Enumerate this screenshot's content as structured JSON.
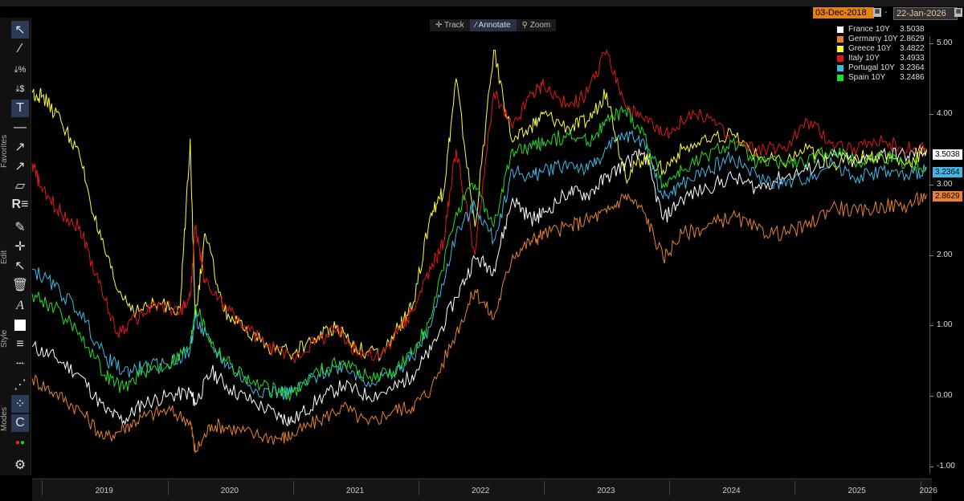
{
  "toolbar": {
    "sections": [
      "Favorites",
      "Edit",
      "Style",
      "Modes"
    ]
  },
  "date_range": {
    "start": "03-Dec-2018",
    "separator": "-",
    "end": "22-Jan-2026"
  },
  "mode_tabs": [
    {
      "label": "Track",
      "icon": "crosshair-icon"
    },
    {
      "label": "Annotate",
      "icon": "pencil-icon"
    },
    {
      "label": "Zoom",
      "icon": "magnifier-icon"
    }
  ],
  "legend": [
    {
      "name": "France 10Y",
      "value": "3.5038",
      "color": "#ffffff"
    },
    {
      "name": "Germany 10Y",
      "value": "2.8629",
      "color": "#e8822c"
    },
    {
      "name": "Greece 10Y",
      "value": "3.4822",
      "color": "#ffff33"
    },
    {
      "name": "Italy 10Y",
      "value": "3.4933",
      "color": "#e01818"
    },
    {
      "name": "Portugal 10Y",
      "value": "3.2364",
      "color": "#3fb8e6"
    },
    {
      "name": "Spain 10Y",
      "value": "3.2486",
      "color": "#22dd22"
    }
  ],
  "last_labels": [
    {
      "value": "3.5038",
      "color": "#ffffff"
    },
    {
      "value": "3.2364",
      "color": "#3fb8e6"
    },
    {
      "value": "2.8629",
      "color": "#e8822c"
    }
  ],
  "chart_data": {
    "type": "line",
    "title": "",
    "xlabel": "",
    "ylabel": "",
    "ylim": [
      -1.1,
      5.1
    ],
    "yticks": [
      "5.00",
      "4.00",
      "3.00",
      "2.00",
      "1.00",
      "0.00",
      "-1.00"
    ],
    "ytick_values": [
      5,
      4,
      3,
      2,
      1,
      0,
      -1
    ],
    "xticks": [
      "2019",
      "2020",
      "2021",
      "2022",
      "2023",
      "2024",
      "2025",
      "2026"
    ],
    "xtick_values": [
      2019.5,
      2020.5,
      2021.5,
      2022.5,
      2023.5,
      2024.5,
      2025.5,
      2026.07
    ],
    "xlim": [
      2018.92,
      2026.06
    ],
    "grid": false,
    "legend_position": "top-right",
    "series": [
      {
        "name": "France 10Y",
        "color": "#ffffff",
        "x": [
          2018.92,
          2019.1,
          2019.3,
          2019.5,
          2019.65,
          2019.8,
          2020.0,
          2020.18,
          2020.22,
          2020.35,
          2020.5,
          2020.7,
          2020.9,
          2021.0,
          2021.2,
          2021.4,
          2021.6,
          2021.8,
          2021.95,
          2022.1,
          2022.3,
          2022.45,
          2022.6,
          2022.75,
          2022.9,
          2023.0,
          2023.2,
          2023.35,
          2023.5,
          2023.65,
          2023.8,
          2023.95,
          2024.1,
          2024.3,
          2024.5,
          2024.7,
          2024.9,
          2025.1,
          2025.3,
          2025.5,
          2025.7,
          2025.9,
          2026.05
        ],
        "y": [
          0.7,
          0.55,
          0.3,
          -0.2,
          -0.35,
          -0.1,
          0.0,
          0.05,
          -0.1,
          0.35,
          0.1,
          -0.1,
          -0.3,
          -0.35,
          -0.05,
          0.15,
          0.0,
          0.1,
          0.3,
          0.65,
          1.4,
          1.95,
          1.8,
          2.8,
          2.5,
          2.6,
          2.9,
          2.85,
          3.1,
          3.3,
          3.45,
          2.5,
          2.8,
          2.95,
          3.1,
          2.95,
          3.1,
          3.2,
          3.4,
          3.3,
          3.45,
          3.4,
          3.5
        ]
      },
      {
        "name": "Germany 10Y",
        "color": "#e8822c",
        "x": [
          2018.92,
          2019.1,
          2019.3,
          2019.5,
          2019.65,
          2019.8,
          2020.0,
          2020.18,
          2020.22,
          2020.35,
          2020.5,
          2020.7,
          2020.9,
          2021.0,
          2021.2,
          2021.4,
          2021.6,
          2021.8,
          2021.95,
          2022.1,
          2022.3,
          2022.45,
          2022.6,
          2022.75,
          2022.9,
          2023.0,
          2023.2,
          2023.35,
          2023.5,
          2023.65,
          2023.8,
          2023.95,
          2024.1,
          2024.3,
          2024.5,
          2024.7,
          2024.9,
          2025.1,
          2025.3,
          2025.5,
          2025.7,
          2025.9,
          2026.05
        ],
        "y": [
          0.25,
          0.05,
          -0.2,
          -0.6,
          -0.45,
          -0.3,
          -0.2,
          -0.35,
          -0.8,
          -0.4,
          -0.45,
          -0.55,
          -0.6,
          -0.55,
          -0.35,
          -0.15,
          -0.4,
          -0.2,
          -0.15,
          0.1,
          0.9,
          1.5,
          1.1,
          2.0,
          2.2,
          2.3,
          2.4,
          2.5,
          2.6,
          2.85,
          2.6,
          1.95,
          2.3,
          2.4,
          2.55,
          2.35,
          2.3,
          2.4,
          2.7,
          2.6,
          2.7,
          2.7,
          2.86
        ]
      },
      {
        "name": "Greece 10Y",
        "color": "#ffff33",
        "x": [
          2018.92,
          2019.0,
          2019.15,
          2019.3,
          2019.45,
          2019.6,
          2019.75,
          2019.9,
          2020.1,
          2020.18,
          2020.22,
          2020.3,
          2020.45,
          2020.6,
          2020.8,
          2021.0,
          2021.2,
          2021.35,
          2021.5,
          2021.7,
          2021.85,
          2021.95,
          2022.1,
          2022.2,
          2022.3,
          2022.45,
          2022.6,
          2022.75,
          2022.9,
          2023.0,
          2023.2,
          2023.35,
          2023.5,
          2023.65,
          2023.8,
          2023.95,
          2024.1,
          2024.3,
          2024.5,
          2024.7,
          2024.9,
          2025.1,
          2025.3,
          2025.5,
          2025.7,
          2025.9,
          2026.05
        ],
        "y": [
          4.3,
          4.25,
          3.9,
          3.4,
          2.3,
          1.5,
          1.2,
          1.3,
          1.25,
          3.65,
          1.1,
          2.3,
          1.2,
          0.95,
          0.7,
          0.6,
          0.85,
          1.0,
          0.7,
          0.55,
          1.0,
          1.25,
          2.6,
          2.9,
          4.5,
          2.4,
          4.9,
          3.6,
          3.8,
          4.0,
          3.8,
          3.9,
          4.3,
          3.1,
          3.4,
          3.2,
          3.5,
          3.6,
          3.7,
          3.4,
          3.3,
          3.5,
          3.3,
          3.4,
          3.4,
          3.3,
          3.48
        ]
      },
      {
        "name": "Italy 10Y",
        "color": "#e01818",
        "x": [
          2018.92,
          2019.0,
          2019.15,
          2019.3,
          2019.45,
          2019.6,
          2019.75,
          2019.9,
          2020.1,
          2020.18,
          2020.22,
          2020.3,
          2020.45,
          2020.6,
          2020.8,
          2021.0,
          2021.2,
          2021.35,
          2021.5,
          2021.7,
          2021.85,
          2021.95,
          2022.1,
          2022.2,
          2022.3,
          2022.45,
          2022.6,
          2022.75,
          2022.9,
          2023.0,
          2023.2,
          2023.35,
          2023.5,
          2023.65,
          2023.8,
          2023.95,
          2024.1,
          2024.3,
          2024.5,
          2024.7,
          2024.9,
          2025.1,
          2025.3,
          2025.5,
          2025.7,
          2025.9,
          2026.05
        ],
        "y": [
          3.3,
          2.9,
          2.6,
          2.4,
          1.6,
          0.9,
          1.1,
          1.3,
          1.2,
          1.4,
          2.4,
          1.6,
          1.3,
          1.0,
          0.7,
          0.55,
          0.8,
          0.95,
          0.65,
          0.55,
          0.95,
          1.2,
          1.8,
          2.2,
          3.5,
          2.0,
          4.3,
          3.8,
          4.3,
          4.4,
          4.1,
          4.3,
          4.9,
          4.1,
          3.9,
          3.7,
          3.9,
          4.0,
          3.6,
          3.5,
          3.5,
          3.9,
          3.6,
          3.5,
          3.6,
          3.5,
          3.49
        ]
      },
      {
        "name": "Portugal 10Y",
        "color": "#3fb8e6",
        "x": [
          2018.92,
          2019.1,
          2019.3,
          2019.5,
          2019.65,
          2019.8,
          2020.0,
          2020.18,
          2020.22,
          2020.35,
          2020.5,
          2020.7,
          2020.9,
          2021.0,
          2021.2,
          2021.4,
          2021.6,
          2021.8,
          2021.95,
          2022.1,
          2022.3,
          2022.45,
          2022.6,
          2022.75,
          2022.9,
          2023.0,
          2023.2,
          2023.35,
          2023.5,
          2023.65,
          2023.8,
          2023.95,
          2024.1,
          2024.3,
          2024.5,
          2024.7,
          2024.9,
          2025.1,
          2025.3,
          2025.5,
          2025.7,
          2025.9,
          2026.05
        ],
        "y": [
          1.8,
          1.55,
          1.2,
          0.55,
          0.35,
          0.4,
          0.45,
          0.65,
          1.1,
          0.7,
          0.4,
          0.1,
          0.05,
          0.05,
          0.3,
          0.45,
          0.2,
          0.3,
          0.55,
          1.0,
          2.3,
          2.7,
          2.2,
          3.2,
          3.1,
          3.2,
          3.3,
          3.2,
          3.5,
          3.7,
          3.6,
          2.8,
          3.0,
          3.2,
          3.4,
          3.1,
          3.0,
          3.1,
          3.3,
          3.1,
          3.2,
          3.1,
          3.24
        ]
      },
      {
        "name": "Spain 10Y",
        "color": "#22dd22",
        "x": [
          2018.92,
          2019.1,
          2019.3,
          2019.5,
          2019.65,
          2019.8,
          2020.0,
          2020.18,
          2020.22,
          2020.35,
          2020.5,
          2020.7,
          2020.9,
          2021.0,
          2021.2,
          2021.4,
          2021.6,
          2021.8,
          2021.95,
          2022.1,
          2022.3,
          2022.45,
          2022.6,
          2022.75,
          2022.9,
          2023.0,
          2023.2,
          2023.35,
          2023.5,
          2023.65,
          2023.8,
          2023.95,
          2024.1,
          2024.3,
          2024.5,
          2024.7,
          2024.9,
          2025.1,
          2025.3,
          2025.5,
          2025.7,
          2025.9,
          2026.05
        ],
        "y": [
          1.45,
          1.25,
          0.9,
          0.3,
          0.1,
          0.35,
          0.45,
          0.7,
          1.3,
          0.75,
          0.45,
          0.15,
          0.05,
          0.05,
          0.35,
          0.5,
          0.25,
          0.35,
          0.6,
          1.1,
          2.6,
          3.0,
          2.4,
          3.5,
          3.5,
          3.6,
          3.7,
          3.6,
          3.9,
          4.05,
          3.7,
          3.0,
          3.2,
          3.4,
          3.6,
          3.3,
          3.3,
          3.3,
          3.5,
          3.3,
          3.4,
          3.3,
          3.25
        ]
      }
    ]
  }
}
